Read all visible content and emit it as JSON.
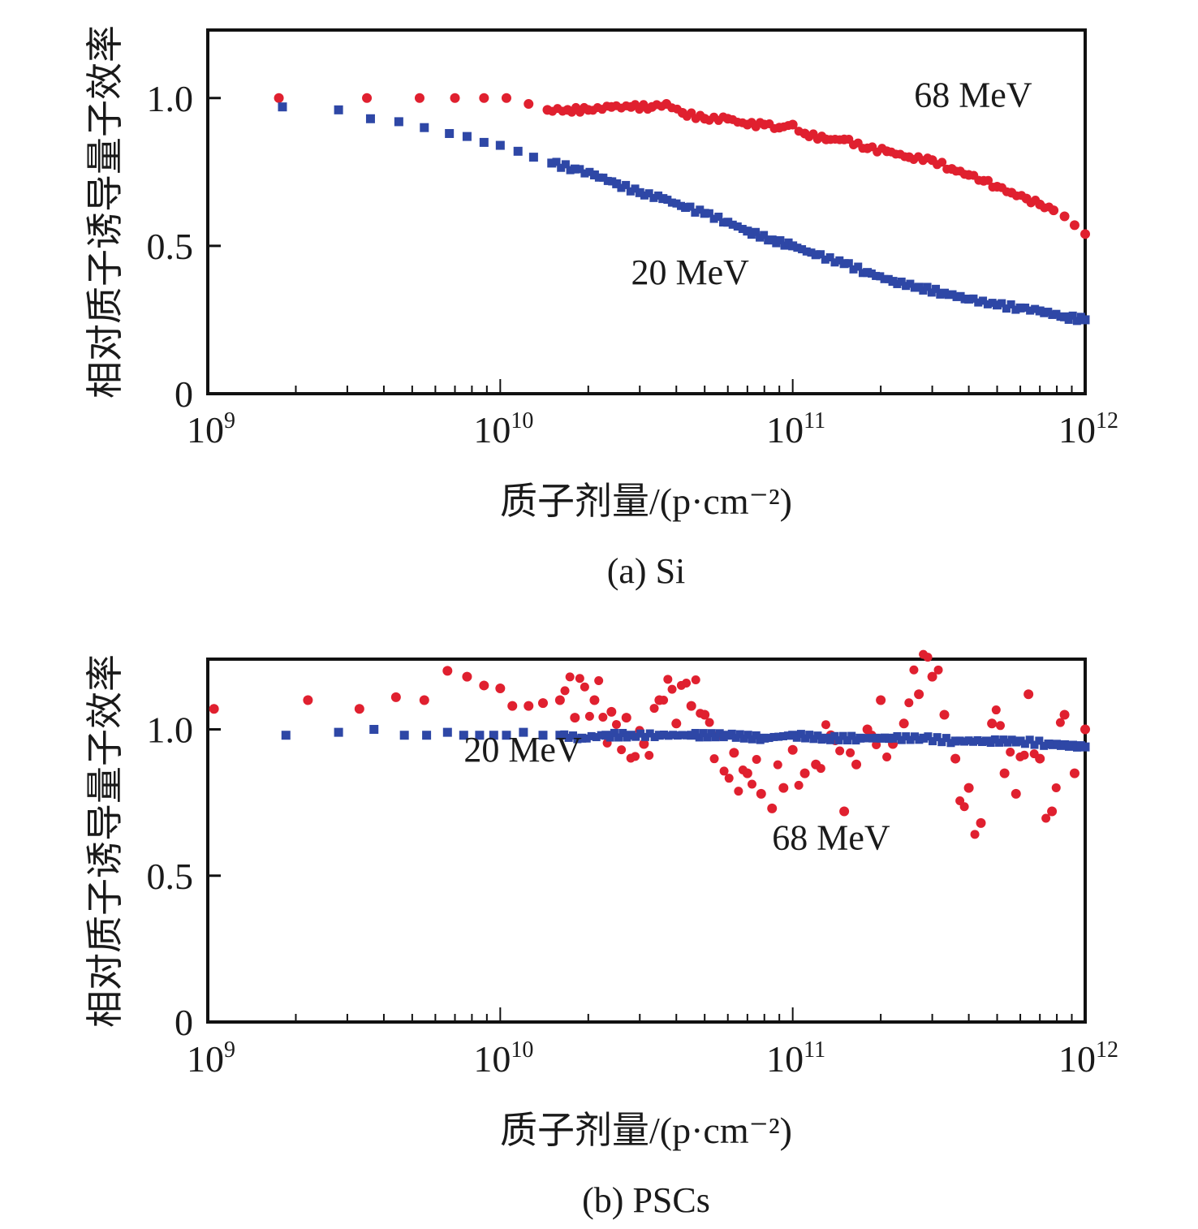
{
  "chart_data": [
    {
      "type": "scatter",
      "panel": "a",
      "caption": "(a) Si",
      "xlabel": "质子剂量/(p·cm⁻²)",
      "ylabel": "相对质子诱导量子效率",
      "xscale": "log",
      "xlim": [
        1000000000.0,
        1000000000000.0
      ],
      "ylim": [
        0,
        1.23
      ],
      "xticks": [
        {
          "base": "10",
          "exp": "9"
        },
        {
          "base": "10",
          "exp": "10"
        },
        {
          "base": "10",
          "exp": "11"
        },
        {
          "base": "10",
          "exp": "12"
        }
      ],
      "yticks": [
        "0",
        "0.5",
        "1.0"
      ],
      "ytick_values": [
        0,
        0.5,
        1.0
      ],
      "grid": false,
      "legend": "none (inline annotations)",
      "annotations": [
        {
          "text": "68 MeV",
          "x": 260000000000.0,
          "y": 0.97
        },
        {
          "text": "20 MeV",
          "x": 28000000000.0,
          "y": 0.37
        }
      ],
      "series": [
        {
          "name": "68 MeV",
          "marker": "circle",
          "color": "#e0202f",
          "x": [
            1750000000.0,
            3500000000.0,
            5300000000.0,
            7000000000.0,
            8800000000.0,
            10500000000.0,
            12500000000.0,
            14500000000.0,
            17000000000.0,
            20000000000.0,
            24000000000.0,
            28000000000.0,
            33000000000.0,
            37000000000.0,
            42000000000.0,
            50000000000.0,
            60000000000.0,
            70000000000.0,
            80000000000.0,
            90000000000.0,
            100000000000.0,
            110000000000.0,
            130000000000.0,
            150000000000.0,
            180000000000.0,
            210000000000.0,
            250000000000.0,
            300000000000.0,
            350000000000.0,
            400000000000.0,
            450000000000.0,
            500000000000.0,
            560000000000.0,
            630000000000.0,
            700000000000.0,
            780000000000.0,
            850000000000.0,
            920000000000.0,
            1000000000000.0
          ],
          "y": [
            1.0,
            1.0,
            1.0,
            1.0,
            1.0,
            1.0,
            0.98,
            0.96,
            0.96,
            0.96,
            0.97,
            0.97,
            0.97,
            0.98,
            0.95,
            0.93,
            0.93,
            0.91,
            0.91,
            0.9,
            0.91,
            0.88,
            0.86,
            0.86,
            0.83,
            0.82,
            0.8,
            0.79,
            0.76,
            0.74,
            0.72,
            0.7,
            0.68,
            0.66,
            0.64,
            0.62,
            0.6,
            0.57,
            0.54
          ]
        },
        {
          "name": "20 MeV",
          "marker": "square",
          "color": "#2e47a6",
          "x": [
            1800000000.0,
            2800000000.0,
            3600000000.0,
            4500000000.0,
            5500000000.0,
            6700000000.0,
            7700000000.0,
            8800000000.0,
            10000000000.0,
            11500000000.0,
            13000000000.0,
            15000000000.0,
            18000000000.0,
            21000000000.0,
            25000000000.0,
            30000000000.0,
            36000000000.0,
            43000000000.0,
            50000000000.0,
            60000000000.0,
            70000000000.0,
            85000000000.0,
            100000000000.0,
            120000000000.0,
            150000000000.0,
            180000000000.0,
            220000000000.0,
            270000000000.0,
            330000000000.0,
            400000000000.0,
            500000000000.0,
            600000000000.0,
            700000000000.0,
            850000000000.0,
            1000000000000.0
          ],
          "y": [
            0.97,
            0.96,
            0.93,
            0.92,
            0.9,
            0.88,
            0.87,
            0.85,
            0.84,
            0.82,
            0.8,
            0.78,
            0.76,
            0.74,
            0.71,
            0.68,
            0.66,
            0.63,
            0.61,
            0.58,
            0.55,
            0.52,
            0.5,
            0.47,
            0.44,
            0.41,
            0.38,
            0.36,
            0.34,
            0.32,
            0.3,
            0.29,
            0.28,
            0.26,
            0.25
          ]
        }
      ]
    },
    {
      "type": "scatter",
      "panel": "b",
      "caption": "(b) PSCs",
      "xlabel": "质子剂量/(p·cm⁻²)",
      "ylabel": "相对质子诱导量子效率",
      "xscale": "log",
      "xlim": [
        1000000000.0,
        1000000000000.0
      ],
      "ylim": [
        0,
        1.24
      ],
      "xticks": [
        {
          "base": "10",
          "exp": "9"
        },
        {
          "base": "10",
          "exp": "10"
        },
        {
          "base": "10",
          "exp": "11"
        },
        {
          "base": "10",
          "exp": "12"
        }
      ],
      "yticks": [
        "0",
        "0.5",
        "1.0"
      ],
      "ytick_values": [
        0,
        0.5,
        1.0
      ],
      "grid": false,
      "legend": "none (inline annotations)",
      "annotations": [
        {
          "text": "20 MeV",
          "x": 7500000000.0,
          "y": 0.89
        },
        {
          "text": "68 MeV",
          "x": 85000000000.0,
          "y": 0.59
        }
      ],
      "series": [
        {
          "name": "68 MeV",
          "marker": "circle",
          "color": "#e0202f",
          "x": [
            1050000000.0,
            2200000000.0,
            3300000000.0,
            4400000000.0,
            5500000000.0,
            6600000000.0,
            7700000000.0,
            8800000000.0,
            10000000000.0,
            11000000000.0,
            12500000000.0,
            14000000000.0,
            16000000000.0,
            18000000000.0,
            21000000000.0,
            24000000000.0,
            27000000000.0,
            31000000000.0,
            35000000000.0,
            40000000000.0,
            45000000000.0,
            50000000000.0,
            56000000000.0,
            63000000000.0,
            70000000000.0,
            78000000000.0,
            85000000000.0,
            93000000000.0,
            100000000000.0,
            110000000000.0,
            120000000000.0,
            135000000000.0,
            150000000000.0,
            165000000000.0,
            180000000000.0,
            200000000000.0,
            220000000000.0,
            240000000000.0,
            270000000000.0,
            300000000000.0,
            330000000000.0,
            360000000000.0,
            400000000000.0,
            440000000000.0,
            480000000000.0,
            530000000000.0,
            580000000000.0,
            640000000000.0,
            700000000000.0,
            770000000000.0,
            850000000000.0,
            920000000000.0,
            1000000000000.0
          ],
          "y": [
            1.07,
            1.1,
            1.07,
            1.11,
            1.1,
            1.2,
            1.18,
            1.15,
            1.14,
            1.08,
            1.08,
            1.09,
            1.1,
            1.04,
            1.1,
            1.06,
            1.04,
            0.95,
            1.1,
            1.02,
            1.08,
            1.05,
            0.98,
            0.92,
            0.85,
            0.78,
            0.73,
            0.8,
            0.93,
            0.85,
            0.88,
            0.98,
            0.72,
            0.88,
            1.0,
            1.1,
            0.95,
            1.02,
            1.12,
            1.18,
            1.05,
            0.9,
            0.8,
            0.68,
            1.02,
            0.85,
            0.78,
            1.12,
            0.9,
            0.72,
            1.05,
            0.85,
            1.0
          ]
        },
        {
          "name": "20 MeV",
          "marker": "square",
          "color": "#2e47a6",
          "x": [
            1850000000.0,
            2800000000.0,
            3700000000.0,
            4700000000.0,
            5600000000.0,
            6600000000.0,
            7500000000.0,
            8500000000.0,
            9500000000.0,
            10500000000.0,
            12000000000.0,
            14000000000.0,
            16000000000.0,
            19000000000.0,
            23000000000.0,
            28000000000.0,
            35000000000.0,
            45000000000.0,
            60000000000.0,
            80000000000.0,
            100000000000.0,
            130000000000.0,
            170000000000.0,
            220000000000.0,
            280000000000.0,
            360000000000.0,
            460000000000.0,
            600000000000.0,
            750000000000.0,
            1000000000000.0
          ],
          "y": [
            0.98,
            0.99,
            1.0,
            0.98,
            0.98,
            0.99,
            0.98,
            0.98,
            0.98,
            0.98,
            0.99,
            0.98,
            0.98,
            0.97,
            0.98,
            0.98,
            0.98,
            0.98,
            0.98,
            0.97,
            0.98,
            0.97,
            0.97,
            0.97,
            0.97,
            0.96,
            0.96,
            0.96,
            0.95,
            0.94
          ]
        }
      ]
    }
  ]
}
